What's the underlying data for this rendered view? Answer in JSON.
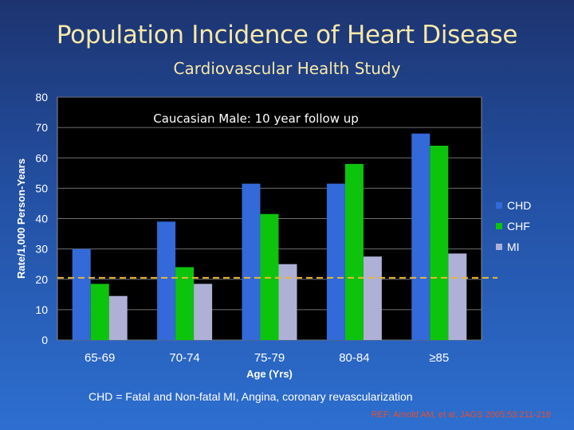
{
  "slide": {
    "title": "Population Incidence of Heart Disease",
    "subtitle": "Cardiovascular Health Study",
    "footnote": "CHD = Fatal and Non-fatal MI, Angina, coronary revascularization",
    "reference": "REF: Arnold AM, et al, JAGS 2005;53:211-218"
  },
  "chart_data": {
    "type": "bar",
    "title": "Caucasian Male: 10 year follow up",
    "xlabel": "Age (Yrs)",
    "ylabel": "Rate/1,000 Person-Years",
    "ylim": [
      0,
      80
    ],
    "yticks": [
      0,
      10,
      20,
      30,
      40,
      50,
      60,
      70,
      80
    ],
    "categories": [
      "65-69",
      "70-74",
      "75-79",
      "80-84",
      "≥85"
    ],
    "series": [
      {
        "name": "CHD",
        "color": "#3369d9",
        "values": [
          30,
          39,
          51.5,
          51.5,
          68
        ]
      },
      {
        "name": "CHF",
        "color": "#0cc40c",
        "values": [
          18.5,
          24,
          41.5,
          58,
          64
        ]
      },
      {
        "name": "MI",
        "color": "#aeb0d6",
        "values": [
          14.5,
          18.5,
          25,
          27.5,
          28.5
        ]
      }
    ],
    "reference_line": {
      "value": 20.5,
      "color": "#e8b836",
      "style": "dashed"
    },
    "legend": "right",
    "background": "#000000"
  }
}
